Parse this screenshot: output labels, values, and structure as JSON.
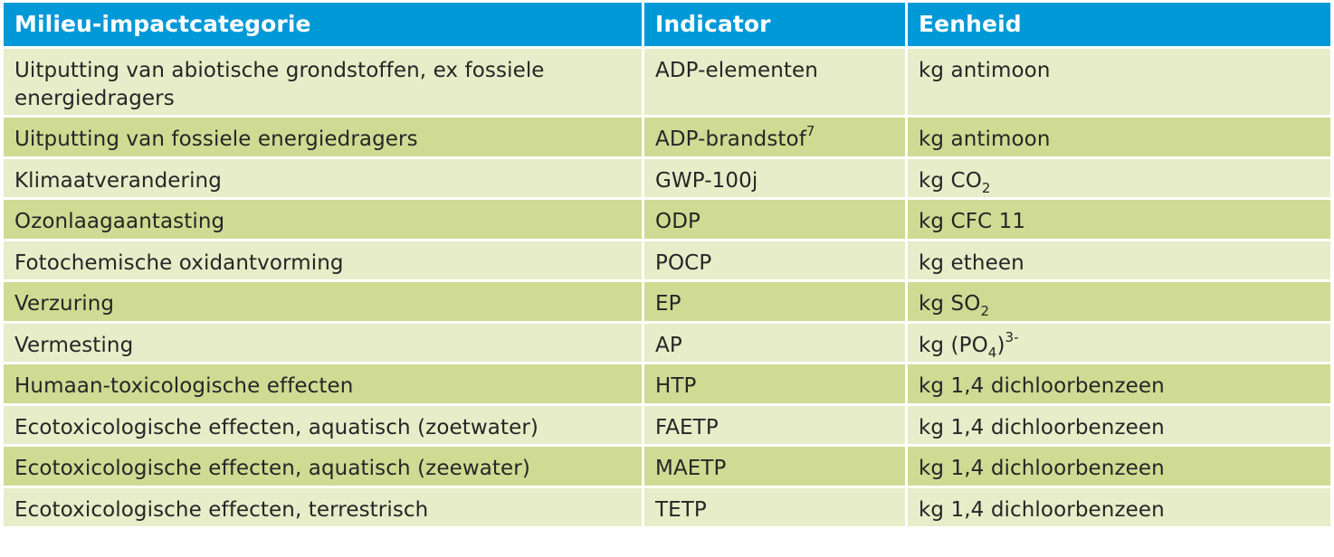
{
  "header": {
    "col1": "Milieu-impactcategorie",
    "col2": "Indicator",
    "col3": "Eenheid"
  },
  "rows": [
    {
      "category": "Uitputting van abiotische grondstoffen, ex fossiele energiedragers",
      "indicator": "ADP-elementen",
      "unit": "kg antimoon"
    },
    {
      "category": "Uitputting van fossiele energiedragers",
      "indicator": "ADP-brandstof",
      "indicator_sup": "7",
      "unit": "kg antimoon"
    },
    {
      "category": "Klimaatverandering",
      "indicator": "GWP-100j",
      "unit_pre": "kg CO",
      "unit_sub": "2"
    },
    {
      "category": "Ozonlaagaantasting",
      "indicator": "ODP",
      "unit": "kg CFC 11"
    },
    {
      "category": "Fotochemische oxidantvorming",
      "indicator": "POCP",
      "unit": "kg etheen"
    },
    {
      "category": "Verzuring",
      "indicator": "EP",
      "unit_pre": "kg SO",
      "unit_sub": "2"
    },
    {
      "category": "Vermesting",
      "indicator": "AP",
      "unit_pre": "kg (PO",
      "unit_sub": "4",
      "unit_mid": ")",
      "unit_sup": "3-"
    },
    {
      "category": "Humaan-toxicologische effecten",
      "indicator": "HTP",
      "unit": "kg 1,4 dichloorbenzeen"
    },
    {
      "category": "Ecotoxicologische effecten, aquatisch (zoetwater)",
      "indicator": "FAETP",
      "unit": "kg 1,4 dichloorbenzeen"
    },
    {
      "category": "Ecotoxicologische effecten, aquatisch (zeewater)",
      "indicator": "MAETP",
      "unit": "kg 1,4 dichloorbenzeen"
    },
    {
      "category": "Ecotoxicologische effecten, terrestrisch",
      "indicator": "TETP",
      "unit": "kg 1,4 dichloorbenzeen"
    }
  ],
  "colors": {
    "header": "#0099d8",
    "row_light": "#e6edc8",
    "row_dark": "#cfdb93"
  }
}
